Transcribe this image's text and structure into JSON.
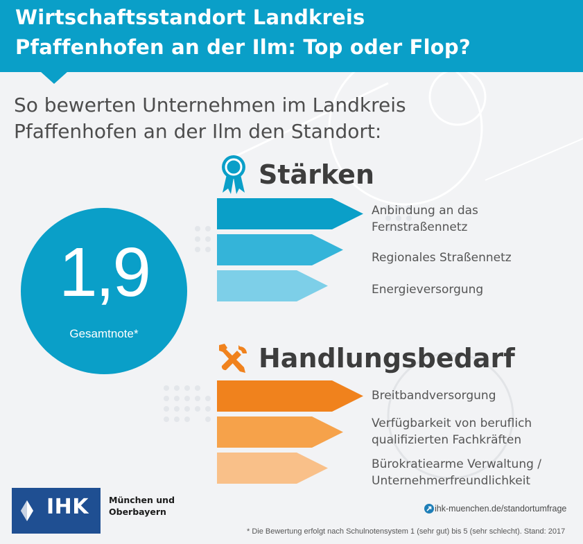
{
  "header": {
    "title_line1": "Wirtschaftsstandort Landkreis",
    "title_line2": "Pfaffenhofen an der Ilm: Top oder Flop?"
  },
  "subtitle": {
    "line1": "So bewerten Unternehmen im Landkreis",
    "line2": "Pfaffenhofen an der Ilm den Standort:"
  },
  "score": {
    "value": "1,9",
    "label": "Gesamtnote*"
  },
  "strengths": {
    "heading": "Stärken",
    "icon": "award-ribbon-icon",
    "items": [
      {
        "line1": "Anbindung an das",
        "line2": "Fernstraßennetz",
        "color": "#0a9fc8"
      },
      {
        "line1": "Regionales Straßennetz",
        "line2": "",
        "color": "#34b4d9"
      },
      {
        "line1": "Energieversorgung",
        "line2": "",
        "color": "#7dcfe8"
      }
    ]
  },
  "needs": {
    "heading": "Handlungsbedarf",
    "icon": "tools-icon",
    "items": [
      {
        "line1": "Breitbandversorgung",
        "line2": "",
        "color": "#f0821d"
      },
      {
        "line1": "Verfügbarkeit von beruflich",
        "line2": "qualifizierten Fachkräften",
        "color": "#f6a24a"
      },
      {
        "line1": "Bürokratiearme Verwaltung /",
        "line2": "Unternehmerfreundlichkeit",
        "color": "#f9c089"
      }
    ]
  },
  "footer": {
    "logo_text": "IHK",
    "region_line1": "München und",
    "region_line2": "Oberbayern",
    "url": "ihk-muenchen.de/standortumfrage",
    "footnote": "* Die Bewertung erfolgt nach Schulnotensystem 1 (sehr gut) bis 5 (sehr schlecht). Stand: 2017"
  },
  "colors": {
    "brand_blue": "#0a9fc8",
    "brand_orange": "#f0821d",
    "ihk_navy": "#1f4f92"
  }
}
